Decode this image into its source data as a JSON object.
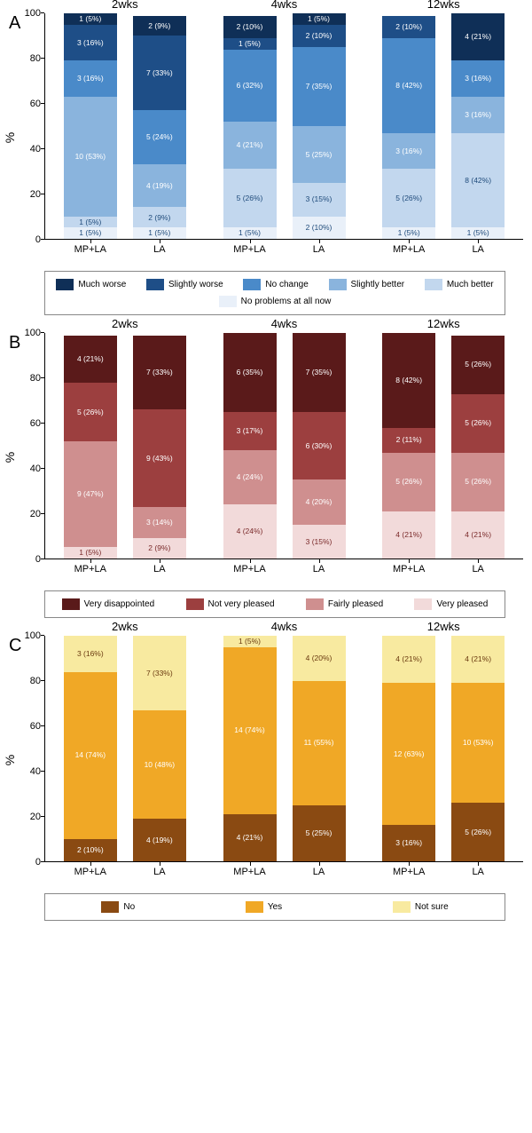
{
  "axis": {
    "ylabel": "%",
    "ymin": 0,
    "ymax": 100,
    "ystep": 20,
    "tick_fontsize": 11,
    "label_fontsize": 14
  },
  "panels": [
    {
      "id": "A",
      "legend": [
        {
          "label": "Much worse",
          "color": "#0f2f57"
        },
        {
          "label": "Slightly worse",
          "color": "#1e4e87"
        },
        {
          "label": "No change",
          "color": "#4a8ac9"
        },
        {
          "label": "Slightly better",
          "color": "#8ab4dd"
        },
        {
          "label": "Much better",
          "color": "#c2d7ee"
        },
        {
          "label": "No problems at all now",
          "color": "#e9f0f9"
        }
      ],
      "label_color_dark": "#1e4a7a",
      "groups": [
        {
          "title": "2wks",
          "bars": [
            {
              "label": "MP+LA",
              "segs": [
                {
                  "text": "1 (5%)",
                  "v": 5,
                  "c": "#0f2f57"
                },
                {
                  "text": "3 (16%)",
                  "v": 16,
                  "c": "#1e4e87"
                },
                {
                  "text": "3 (16%)",
                  "v": 16,
                  "c": "#4a8ac9"
                },
                {
                  "text": "10 (53%)",
                  "v": 53,
                  "c": "#8ab4dd"
                },
                {
                  "text": "1 (5%)",
                  "v": 5,
                  "c": "#c2d7ee",
                  "dark": true
                },
                {
                  "text": "1 (5%)",
                  "v": 5,
                  "c": "#e9f0f9",
                  "dark": true
                }
              ]
            },
            {
              "label": "LA",
              "segs": [
                {
                  "text": "2 (9%)",
                  "v": 9,
                  "c": "#0f2f57"
                },
                {
                  "text": "7 (33%)",
                  "v": 33,
                  "c": "#1e4e87"
                },
                {
                  "text": "5 (24%)",
                  "v": 24,
                  "c": "#4a8ac9"
                },
                {
                  "text": "4 (19%)",
                  "v": 19,
                  "c": "#8ab4dd"
                },
                {
                  "text": "2 (9%)",
                  "v": 9,
                  "c": "#c2d7ee",
                  "dark": true
                },
                {
                  "text": "1 (5%)",
                  "v": 5,
                  "c": "#e9f0f9",
                  "dark": true
                }
              ]
            }
          ]
        },
        {
          "title": "4wks",
          "bars": [
            {
              "label": "MP+LA",
              "segs": [
                {
                  "text": "2 (10%)",
                  "v": 10,
                  "c": "#0f2f57"
                },
                {
                  "text": "1 (5%)",
                  "v": 5,
                  "c": "#1e4e87"
                },
                {
                  "text": "6 (32%)",
                  "v": 32,
                  "c": "#4a8ac9"
                },
                {
                  "text": "4 (21%)",
                  "v": 21,
                  "c": "#8ab4dd"
                },
                {
                  "text": "5 (26%)",
                  "v": 26,
                  "c": "#c2d7ee",
                  "dark": true
                },
                {
                  "text": "1 (5%)",
                  "v": 5,
                  "c": "#e9f0f9",
                  "dark": true
                }
              ]
            },
            {
              "label": "LA",
              "segs": [
                {
                  "text": "1 (5%)",
                  "v": 5,
                  "c": "#0f2f57"
                },
                {
                  "text": "2 (10%)",
                  "v": 10,
                  "c": "#1e4e87"
                },
                {
                  "text": "7 (35%)",
                  "v": 35,
                  "c": "#4a8ac9"
                },
                {
                  "text": "5 (25%)",
                  "v": 25,
                  "c": "#8ab4dd"
                },
                {
                  "text": "3 (15%)",
                  "v": 15,
                  "c": "#c2d7ee",
                  "dark": true
                },
                {
                  "text": "2 (10%)",
                  "v": 10,
                  "c": "#e9f0f9",
                  "dark": true
                }
              ]
            }
          ]
        },
        {
          "title": "12wks",
          "bars": [
            {
              "label": "MP+LA",
              "segs": [
                {
                  "text": "2 (10%)",
                  "v": 10,
                  "c": "#1e4e87"
                },
                {
                  "text": "8 (42%)",
                  "v": 42,
                  "c": "#4a8ac9"
                },
                {
                  "text": "3 (16%)",
                  "v": 16,
                  "c": "#8ab4dd"
                },
                {
                  "text": "5 (26%)",
                  "v": 26,
                  "c": "#c2d7ee",
                  "dark": true
                },
                {
                  "text": "1 (5%)",
                  "v": 5,
                  "c": "#e9f0f9",
                  "dark": true
                }
              ]
            },
            {
              "label": "LA",
              "segs": [
                {
                  "text": "4 (21%)",
                  "v": 21,
                  "c": "#0f2f57"
                },
                {
                  "text": "3 (16%)",
                  "v": 16,
                  "c": "#4a8ac9"
                },
                {
                  "text": "3 (16%)",
                  "v": 16,
                  "c": "#8ab4dd"
                },
                {
                  "text": "8 (42%)",
                  "v": 42,
                  "c": "#c2d7ee",
                  "dark": true
                },
                {
                  "text": "1 (5%)",
                  "v": 5,
                  "c": "#e9f0f9",
                  "dark": true
                }
              ]
            }
          ]
        }
      ]
    },
    {
      "id": "B",
      "legend": [
        {
          "label": "Very disappointed",
          "color": "#5a1a1a"
        },
        {
          "label": "Not very pleased",
          "color": "#9c3f3f"
        },
        {
          "label": "Fairly pleased",
          "color": "#cf8f8f"
        },
        {
          "label": "Very pleased",
          "color": "#f2dada"
        }
      ],
      "label_color_dark": "#7a2a2a",
      "groups": [
        {
          "title": "2wks",
          "bars": [
            {
              "label": "MP+LA",
              "segs": [
                {
                  "text": "4 (21%)",
                  "v": 21,
                  "c": "#5a1a1a"
                },
                {
                  "text": "5 (26%)",
                  "v": 26,
                  "c": "#9c3f3f"
                },
                {
                  "text": "9 (47%)",
                  "v": 47,
                  "c": "#cf8f8f"
                },
                {
                  "text": "1 (5%)",
                  "v": 5,
                  "c": "#f2dada",
                  "dark": true
                }
              ]
            },
            {
              "label": "LA",
              "segs": [
                {
                  "text": "7 (33%)",
                  "v": 33,
                  "c": "#5a1a1a"
                },
                {
                  "text": "9 (43%)",
                  "v": 43,
                  "c": "#9c3f3f"
                },
                {
                  "text": "3 (14%)",
                  "v": 14,
                  "c": "#cf8f8f"
                },
                {
                  "text": "2 (9%)",
                  "v": 9,
                  "c": "#f2dada",
                  "dark": true
                }
              ]
            }
          ]
        },
        {
          "title": "4wks",
          "bars": [
            {
              "label": "MP+LA",
              "segs": [
                {
                  "text": "6 (35%)",
                  "v": 35,
                  "c": "#5a1a1a"
                },
                {
                  "text": "3 (17%)",
                  "v": 17,
                  "c": "#9c3f3f"
                },
                {
                  "text": "4 (24%)",
                  "v": 24,
                  "c": "#cf8f8f"
                },
                {
                  "text": "4 (24%)",
                  "v": 24,
                  "c": "#f2dada",
                  "dark": true
                }
              ]
            },
            {
              "label": "LA",
              "segs": [
                {
                  "text": "7 (35%)",
                  "v": 35,
                  "c": "#5a1a1a"
                },
                {
                  "text": "6 (30%)",
                  "v": 30,
                  "c": "#9c3f3f"
                },
                {
                  "text": "4 (20%)",
                  "v": 20,
                  "c": "#cf8f8f"
                },
                {
                  "text": "3 (15%)",
                  "v": 15,
                  "c": "#f2dada",
                  "dark": true
                }
              ]
            }
          ]
        },
        {
          "title": "12wks",
          "bars": [
            {
              "label": "MP+LA",
              "segs": [
                {
                  "text": "8 (42%)",
                  "v": 42,
                  "c": "#5a1a1a"
                },
                {
                  "text": "2 (11%)",
                  "v": 11,
                  "c": "#9c3f3f"
                },
                {
                  "text": "5 (26%)",
                  "v": 26,
                  "c": "#cf8f8f"
                },
                {
                  "text": "4 (21%)",
                  "v": 21,
                  "c": "#f2dada",
                  "dark": true
                }
              ]
            },
            {
              "label": "LA",
              "segs": [
                {
                  "text": "5 (26%)",
                  "v": 26,
                  "c": "#5a1a1a"
                },
                {
                  "text": "5 (26%)",
                  "v": 26,
                  "c": "#9c3f3f"
                },
                {
                  "text": "5 (26%)",
                  "v": 26,
                  "c": "#cf8f8f"
                },
                {
                  "text": "4 (21%)",
                  "v": 21,
                  "c": "#f2dada",
                  "dark": true
                }
              ]
            }
          ]
        }
      ]
    },
    {
      "id": "C",
      "legend": [
        {
          "label": "No",
          "color": "#8a4a12"
        },
        {
          "label": "Yes",
          "color": "#f0a826"
        },
        {
          "label": "Not sure",
          "color": "#f8eaa0"
        }
      ],
      "label_color_dark": "#6a3a10",
      "groups": [
        {
          "title": "2wks",
          "bars": [
            {
              "label": "MP+LA",
              "segs": [
                {
                  "text": "3 (16%)",
                  "v": 16,
                  "c": "#f8eaa0",
                  "dark": true
                },
                {
                  "text": "14 (74%)",
                  "v": 74,
                  "c": "#f0a826"
                },
                {
                  "text": "2 (10%)",
                  "v": 10,
                  "c": "#8a4a12"
                }
              ]
            },
            {
              "label": "LA",
              "segs": [
                {
                  "text": "7 (33%)",
                  "v": 33,
                  "c": "#f8eaa0",
                  "dark": true
                },
                {
                  "text": "10 (48%)",
                  "v": 48,
                  "c": "#f0a826"
                },
                {
                  "text": "4 (19%)",
                  "v": 19,
                  "c": "#8a4a12"
                }
              ]
            }
          ]
        },
        {
          "title": "4wks",
          "bars": [
            {
              "label": "MP+LA",
              "segs": [
                {
                  "text": "1 (5%)",
                  "v": 5,
                  "c": "#f8eaa0",
                  "dark": true
                },
                {
                  "text": "14 (74%)",
                  "v": 74,
                  "c": "#f0a826"
                },
                {
                  "text": "4 (21%)",
                  "v": 21,
                  "c": "#8a4a12"
                }
              ]
            },
            {
              "label": "LA",
              "segs": [
                {
                  "text": "4 (20%)",
                  "v": 20,
                  "c": "#f8eaa0",
                  "dark": true
                },
                {
                  "text": "11 (55%)",
                  "v": 55,
                  "c": "#f0a826"
                },
                {
                  "text": "5 (25%)",
                  "v": 25,
                  "c": "#8a4a12"
                }
              ]
            }
          ]
        },
        {
          "title": "12wks",
          "bars": [
            {
              "label": "MP+LA",
              "segs": [
                {
                  "text": "4 (21%)",
                  "v": 21,
                  "c": "#f8eaa0",
                  "dark": true
                },
                {
                  "text": "12 (63%)",
                  "v": 63,
                  "c": "#f0a826"
                },
                {
                  "text": "3 (16%)",
                  "v": 16,
                  "c": "#8a4a12"
                }
              ]
            },
            {
              "label": "LA",
              "segs": [
                {
                  "text": "4 (21%)",
                  "v": 21,
                  "c": "#f8eaa0",
                  "dark": true
                },
                {
                  "text": "10 (53%)",
                  "v": 53,
                  "c": "#f0a826"
                },
                {
                  "text": "5 (26%)",
                  "v": 26,
                  "c": "#8a4a12"
                }
              ]
            }
          ]
        }
      ]
    }
  ]
}
